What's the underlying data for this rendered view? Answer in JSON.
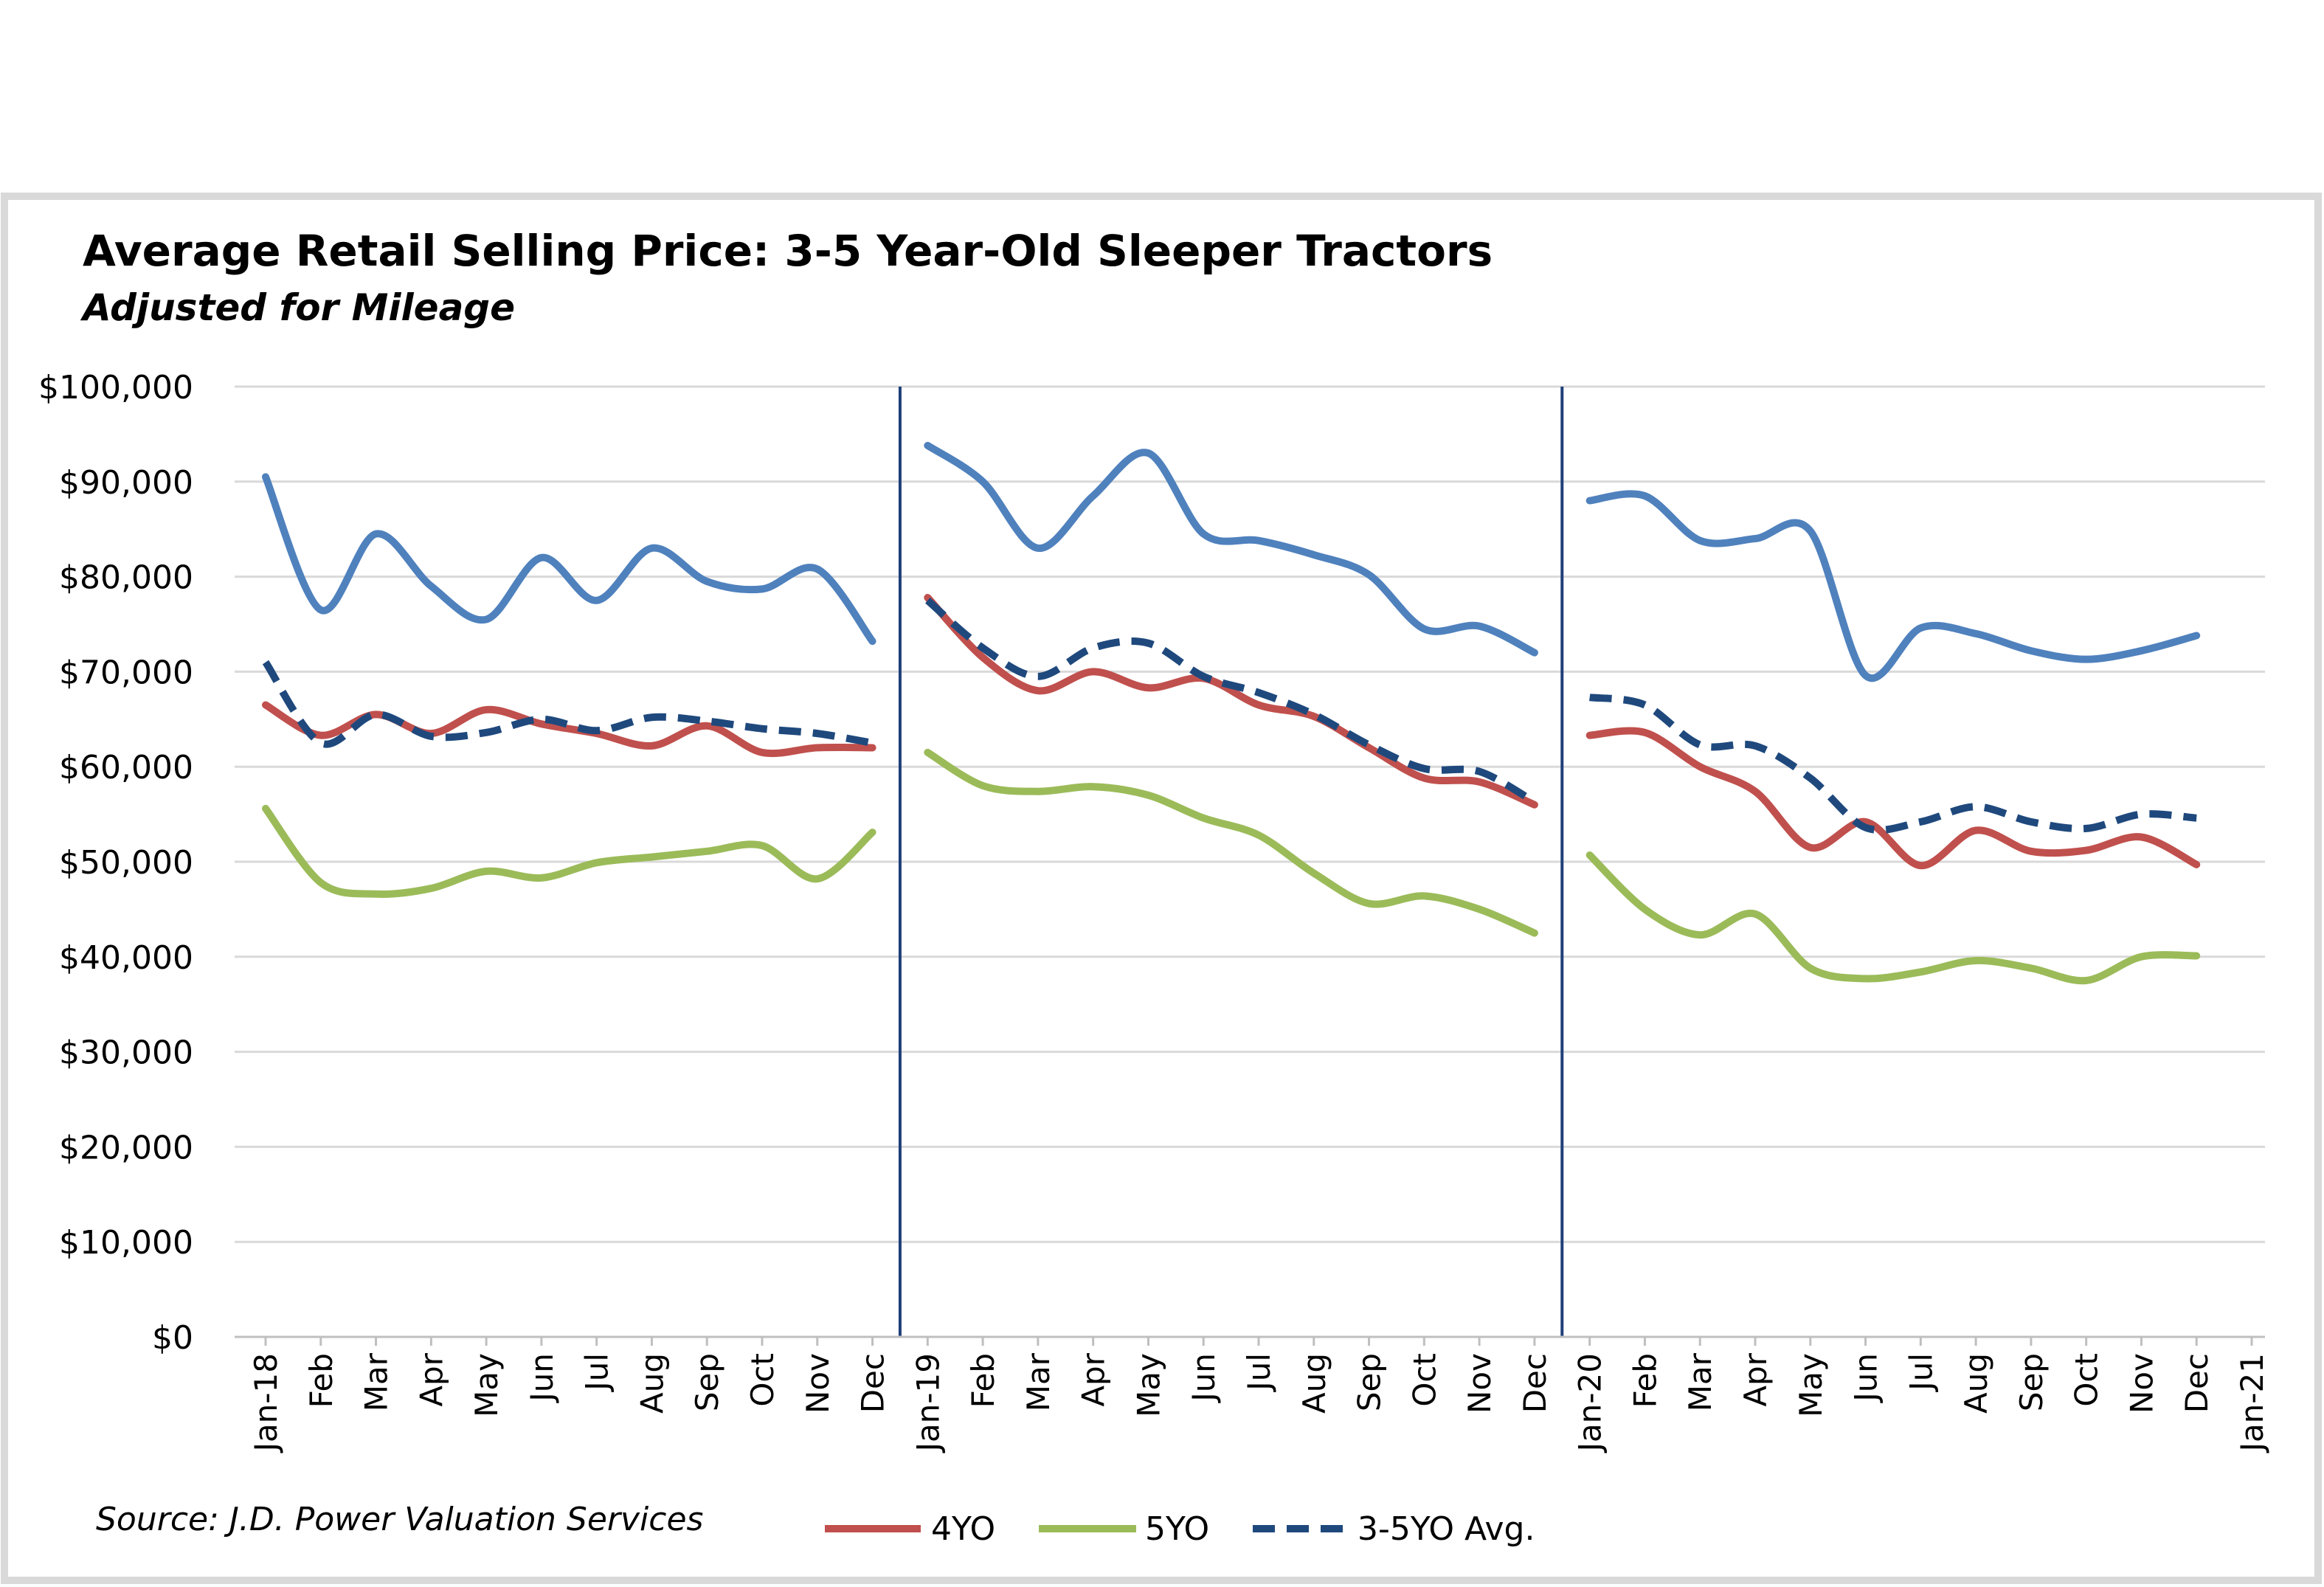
{
  "chart_data": {
    "type": "line",
    "title": "Average Retail Selling Price: 3-5 Year-Old  Sleeper Tractors",
    "subtitle": "Adjusted for Mileage",
    "source": "Source: J.D. Power Valuation Services",
    "ylim": [
      0,
      100000
    ],
    "yticks": [
      "$0",
      "$10,000",
      "$20,000",
      "$30,000",
      "$40,000",
      "$50,000",
      "$60,000",
      "$70,000",
      "$80,000",
      "$90,000",
      "$100,000"
    ],
    "x_tick_labels": [
      "Jan-18",
      "Feb",
      "Mar",
      "Apr",
      "May",
      "Jun",
      "Jul",
      "Aug",
      "Sep",
      "Oct",
      "Nov",
      "Dec",
      "Jan-19",
      "Feb",
      "Mar",
      "Apr",
      "May",
      "Jun",
      "Jul",
      "Aug",
      "Sep",
      "Oct",
      "Nov",
      "Dec",
      "Jan-20",
      "Feb",
      "Mar",
      "Apr",
      "May",
      "Jun",
      "Jul",
      "Aug",
      "Sep",
      "Oct",
      "Nov",
      "Dec",
      "Jan-21"
    ],
    "year_dividers_after_index": [
      11,
      23
    ],
    "grid": "horizontal",
    "legend_position": "bottom",
    "series": [
      {
        "name": "",
        "color": "#4F81BD",
        "dash": "solid",
        "segments": [
          [
            90500,
            76500,
            84500,
            79000,
            75500,
            82000,
            77500,
            83000,
            79500,
            78700,
            80800,
            73200
          ],
          [
            93800,
            90000,
            83000,
            88500,
            93000,
            84500,
            83800,
            82300,
            80200,
            74500,
            74800,
            72000
          ],
          [
            88000,
            88500,
            83800,
            84000,
            84800,
            69600,
            74600,
            74000,
            72200,
            71300,
            72200,
            73800
          ]
        ]
      },
      {
        "name": "4YO",
        "color": "#C0504D",
        "dash": "solid",
        "segments": [
          [
            66500,
            63300,
            65500,
            63500,
            66000,
            64500,
            63500,
            62200,
            64300,
            61500,
            62000,
            62000
          ],
          [
            77800,
            71500,
            68000,
            70000,
            68300,
            69300,
            66500,
            65300,
            62000,
            58800,
            58400,
            56000
          ],
          [
            63300,
            63600,
            60000,
            57400,
            51500,
            54200,
            49600,
            53300,
            51100,
            51200,
            52600,
            49700
          ]
        ]
      },
      {
        "name": "5YO",
        "color": "#9BBB59",
        "dash": "solid",
        "segments": [
          [
            55600,
            47800,
            46600,
            47200,
            49000,
            48300,
            49900,
            50500,
            51100,
            51700,
            48200,
            53100
          ],
          [
            61500,
            58000,
            57400,
            57900,
            57000,
            54600,
            52800,
            48800,
            45600,
            46400,
            45000,
            42500
          ],
          [
            50700,
            45000,
            42300,
            44500,
            38800,
            37700,
            38400,
            39600,
            38800,
            37500,
            40000,
            40100
          ]
        ]
      },
      {
        "name": "3-5YO Avg.",
        "color": "#1F497D",
        "dash": "dashed",
        "segments": [
          [
            71000,
            62500,
            65500,
            63200,
            63600,
            65000,
            63800,
            65200,
            64800,
            64000,
            63500,
            62500
          ],
          [
            77500,
            72500,
            69500,
            72500,
            73000,
            69500,
            67800,
            65500,
            62300,
            59800,
            59500,
            56300
          ],
          [
            67300,
            66500,
            62300,
            62200,
            58800,
            53600,
            54200,
            55800,
            54200,
            53500,
            55000,
            54600
          ]
        ]
      }
    ]
  }
}
